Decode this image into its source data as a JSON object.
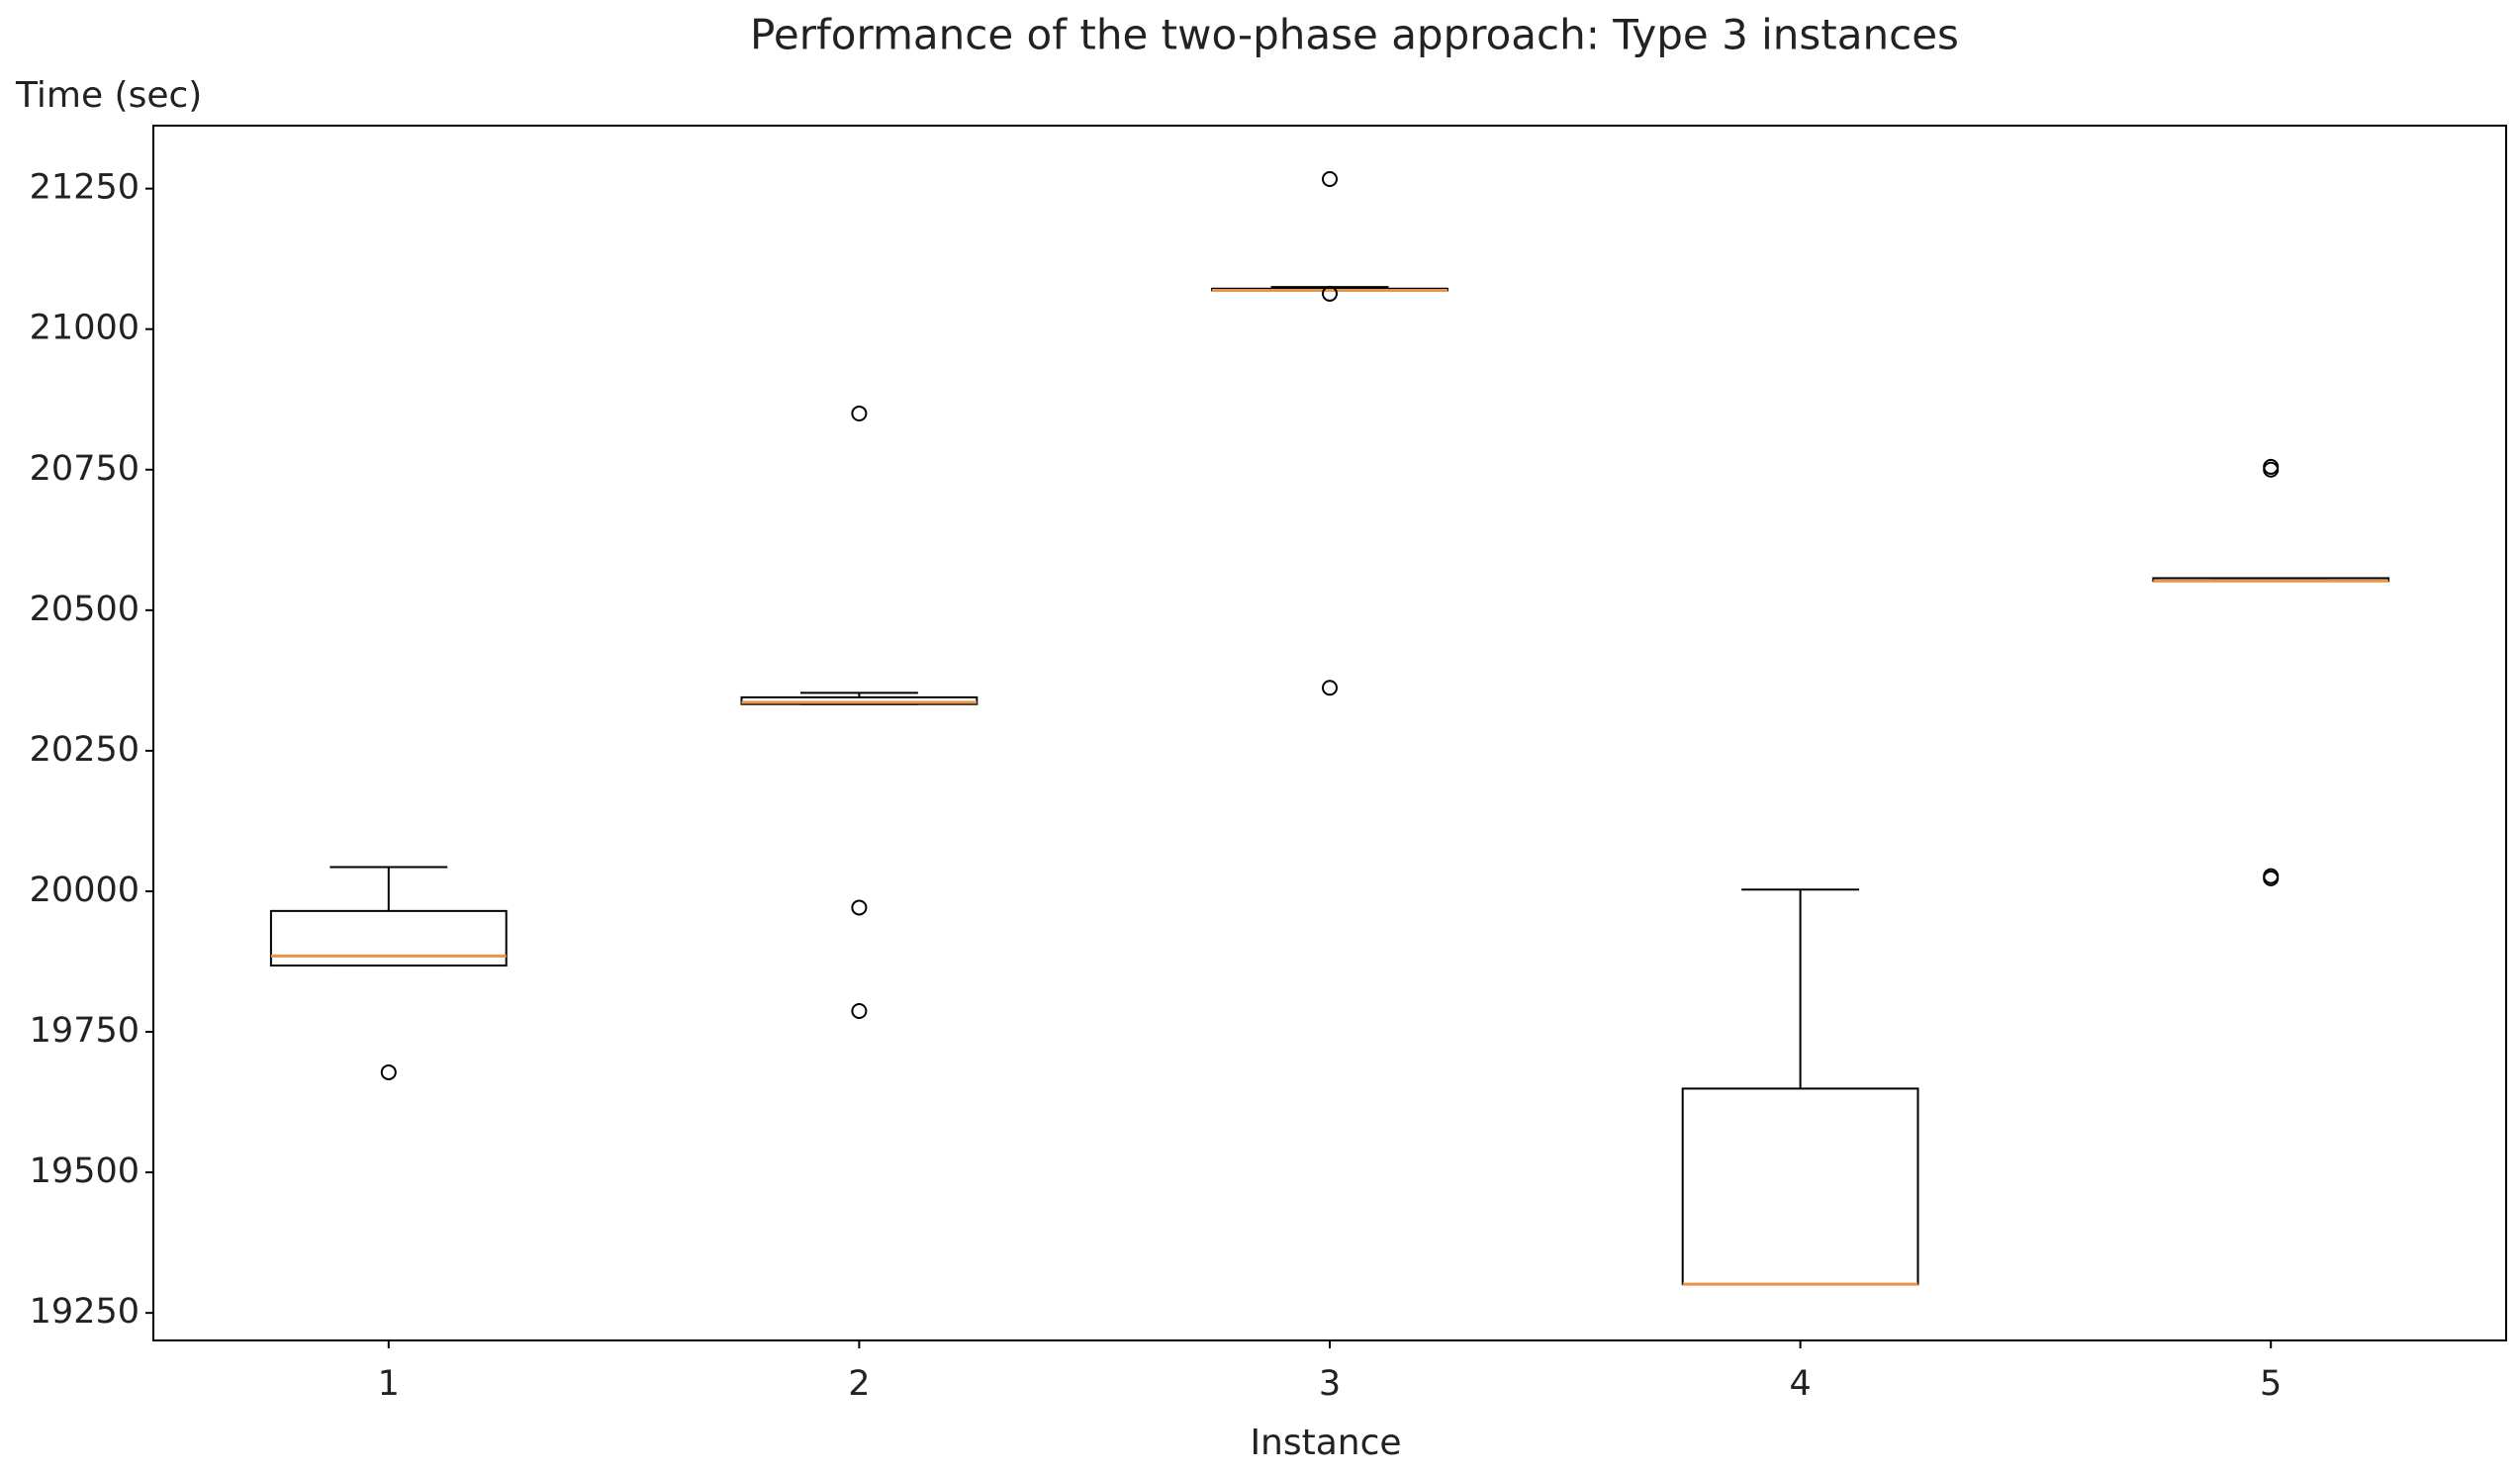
{
  "chart_data": {
    "type": "box",
    "title": "Performance of the two-phase approach: Type 3 instances",
    "x_label": "Instance",
    "y_label": "Time (sec)",
    "categories": [
      "1",
      "2",
      "3",
      "4",
      "5"
    ],
    "boxes": [
      {
        "whislo": 19868,
        "q1": 19868,
        "med": 19885,
        "q3": 19965,
        "whishi": 20043,
        "fliers": [
          19678
        ]
      },
      {
        "whislo": 20333,
        "q1": 20333,
        "med": 20336,
        "q3": 20345,
        "whishi": 20353,
        "fliers": [
          20850,
          19971,
          19787
        ]
      },
      {
        "whislo": 21069,
        "q1": 21069,
        "med": 21069,
        "q3": 21072,
        "whishi": 21075,
        "fliers": [
          21267,
          21063,
          20362
        ]
      },
      {
        "whislo": 19301,
        "q1": 19301,
        "med": 19301,
        "q3": 19649,
        "whishi": 20003,
        "fliers": []
      },
      {
        "whislo": 20552,
        "q1": 20552,
        "med": 20552,
        "q3": 20557,
        "whishi": 20557,
        "fliers": [
          20750,
          20755,
          20023,
          20027
        ]
      }
    ],
    "box_color": "#000000",
    "median_color": "#e8954a",
    "ylim": [
      19201,
      21362
    ],
    "yticks": [
      19250,
      19500,
      19750,
      20000,
      20250,
      20500,
      20750,
      21000,
      21250
    ],
    "grid": false
  }
}
